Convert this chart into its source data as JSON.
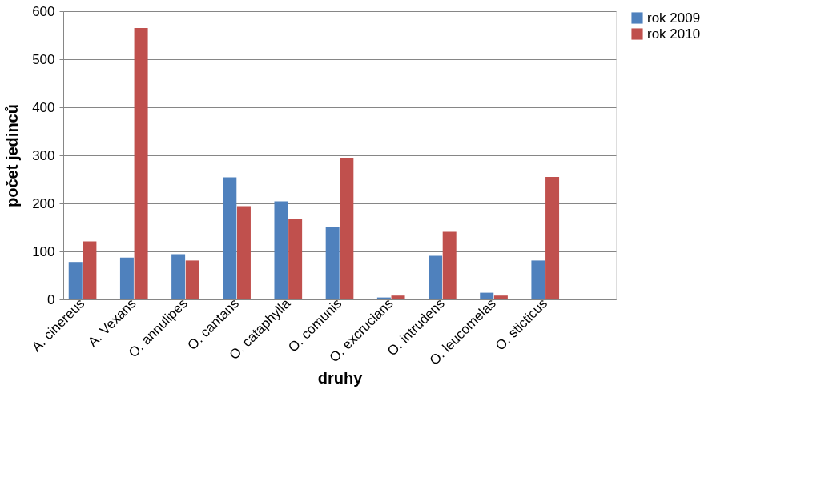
{
  "chart_data": {
    "type": "bar",
    "xlabel": "druhy",
    "ylabel": "počet jedinců",
    "categories": [
      "A. cinereus",
      "A. Vexans",
      "O. annulipes",
      "O. cantans",
      "O. cataphylla",
      "O. comunis",
      "O. excrucians",
      "O. intrudens",
      "O. leucomelas",
      "O. sticticus",
      null
    ],
    "series": [
      {
        "name": "rok 2009",
        "color": "#4f81bd",
        "values": [
          78,
          87,
          94,
          254,
          204,
          151,
          4,
          91,
          14,
          81,
          null
        ]
      },
      {
        "name": "rok 2010",
        "color": "#c0504d",
        "values": [
          121,
          565,
          81,
          194,
          167,
          295,
          8,
          141,
          8,
          255,
          null
        ]
      }
    ],
    "ylim": [
      0,
      600
    ],
    "yticks": [
      0,
      100,
      200,
      300,
      400,
      500,
      600
    ],
    "grid": "y",
    "legend": "right"
  }
}
